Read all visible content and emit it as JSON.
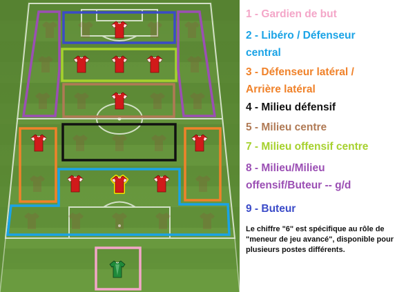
{
  "pitch": {
    "formation_players": [
      {
        "role": "goalkeeper",
        "kit": "green"
      },
      {
        "role": "libero-left",
        "kit": "red"
      },
      {
        "role": "libero-center",
        "kit": "red-highlight"
      },
      {
        "role": "libero-right",
        "kit": "red"
      },
      {
        "role": "fullback-left",
        "kit": "red"
      },
      {
        "role": "fullback-right",
        "kit": "red"
      },
      {
        "role": "center-mid",
        "kit": "red"
      },
      {
        "role": "att-mid-left",
        "kit": "red"
      },
      {
        "role": "att-mid-center",
        "kit": "red"
      },
      {
        "role": "att-mid-right",
        "kit": "red"
      },
      {
        "role": "striker",
        "kit": "red"
      }
    ],
    "colors": {
      "grass_light": "#6a9b3f",
      "grass_dark": "#5e8e36",
      "lines": "#e6efe0",
      "shirt_red": "#d11a1a",
      "highlight": "#f2e600",
      "keeper_green": "#1f8a3a"
    }
  },
  "legend": {
    "items": [
      {
        "num": "1",
        "label": "Gardien de but",
        "color": "#f4a6c8"
      },
      {
        "num": "2",
        "label": "Libéro / Défenseur",
        "label2": "central",
        "color": "#1aa3e6"
      },
      {
        "num": "3",
        "label": "Défenseur latéral /",
        "label2": "Arrière latéral",
        "color": "#f0822a"
      },
      {
        "num": "4",
        "label": "Milieu défensif",
        "color": "#111111"
      },
      {
        "num": "5",
        "label": "Milieu centre",
        "color": "#b07a55"
      },
      {
        "num": "7",
        "label": "Milieu offensif centre",
        "color": "#a6d12e"
      },
      {
        "num": "8",
        "label": "Milieu/Milieu",
        "label2": "offensif/Buteur -- g/d",
        "color": "#9b4fb4"
      },
      {
        "num": "9",
        "label": "Buteur",
        "color": "#3b4bc8"
      }
    ],
    "note": "Le chiffre \"6\" est spécifique au rôle de \"meneur de jeu avancé\", disponible pour plusieurs postes différents."
  }
}
